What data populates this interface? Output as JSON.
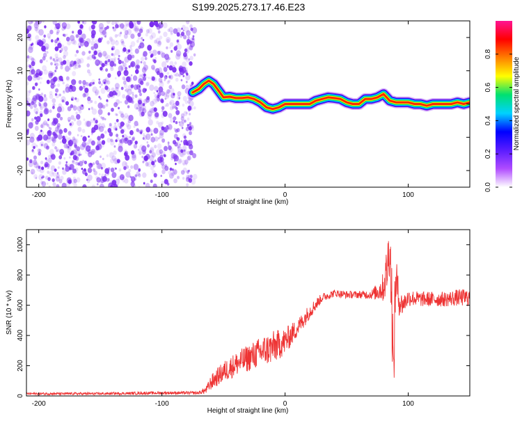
{
  "title": "S199.2025.273.17.46.E23",
  "colors": {
    "snr_line": "#ee3333",
    "noise_dot": "#7a2cf0",
    "colormap": [
      "#ffffff",
      "#b04cff",
      "#5a1cff",
      "#0000ff",
      "#00d2ff",
      "#00e070",
      "#ffff00",
      "#ff8000",
      "#ff0000",
      "#ff1493"
    ]
  },
  "chart_data": [
    {
      "type": "heatmap",
      "xlabel": "Height of straight line (km)",
      "ylabel": "Frequency (Hz)",
      "xlim": [
        -210,
        150
      ],
      "ylim": [
        -25,
        25
      ],
      "xticks": [
        -200,
        -100,
        0,
        100
      ],
      "yticks": [
        -20,
        -10,
        0,
        10,
        20
      ],
      "noise_region": {
        "x_start": -210,
        "x_end": -73
      },
      "ridge": {
        "x": [
          -75,
          -70,
          -66,
          -62,
          -58,
          -55,
          -50,
          -45,
          -40,
          -35,
          -30,
          -25,
          -20,
          -15,
          -10,
          -5,
          0,
          5,
          10,
          15,
          20,
          25,
          30,
          35,
          40,
          45,
          50,
          55,
          60,
          65,
          70,
          75,
          80,
          85,
          90,
          95,
          100,
          105,
          110,
          115,
          120,
          125,
          130,
          135,
          140,
          145,
          150
        ],
        "y": [
          3.5,
          4.5,
          6,
          7,
          6,
          4.5,
          2,
          2.2,
          1.8,
          1.8,
          2,
          1.5,
          0.5,
          -1,
          -1.5,
          -1,
          0,
          0,
          0,
          0,
          0,
          1,
          1.5,
          2,
          1.8,
          1.5,
          0.5,
          0,
          0,
          1.5,
          1.5,
          2,
          3,
          1,
          0.5,
          0.5,
          0.5,
          0,
          0,
          -0.5,
          0,
          0,
          0,
          0,
          0.5,
          0,
          0.5
        ]
      },
      "colorbar": {
        "label": "Normalized spectral amplitude",
        "range": [
          0,
          1
        ],
        "ticks": [
          0.0,
          0.2,
          0.4,
          0.6,
          0.8
        ]
      }
    },
    {
      "type": "line",
      "xlabel": "Height of straight line (km)",
      "ylabel": "SNR (10 * v/v)",
      "xlim": [
        -210,
        150
      ],
      "ylim": [
        0,
        1100
      ],
      "xticks": [
        -200,
        -100,
        0,
        100
      ],
      "yticks": [
        0,
        200,
        400,
        600,
        800,
        1000
      ],
      "series": [
        {
          "x": [
            -210,
            -150,
            -100,
            -70,
            -64,
            -60,
            -50,
            -40,
            -30,
            -20,
            -10,
            0,
            10,
            20,
            30,
            40,
            50,
            60,
            70,
            75,
            80,
            83,
            85,
            87,
            88,
            89,
            90,
            92,
            95,
            100,
            110,
            120,
            130,
            140,
            150
          ],
          "y": [
            15,
            15,
            20,
            20,
            40,
            90,
            160,
            210,
            250,
            290,
            320,
            360,
            450,
            560,
            650,
            680,
            670,
            670,
            670,
            690,
            720,
            850,
            1000,
            560,
            80,
            500,
            800,
            650,
            600,
            650,
            640,
            640,
            640,
            650,
            650
          ],
          "noise_amp": [
            8,
            8,
            10,
            10,
            25,
            50,
            70,
            80,
            90,
            100,
            110,
            90,
            60,
            50,
            30,
            25,
            25,
            25,
            30,
            60,
            100,
            180,
            200,
            300,
            200,
            250,
            200,
            120,
            70,
            55,
            50,
            50,
            50,
            55,
            60
          ]
        }
      ]
    }
  ]
}
